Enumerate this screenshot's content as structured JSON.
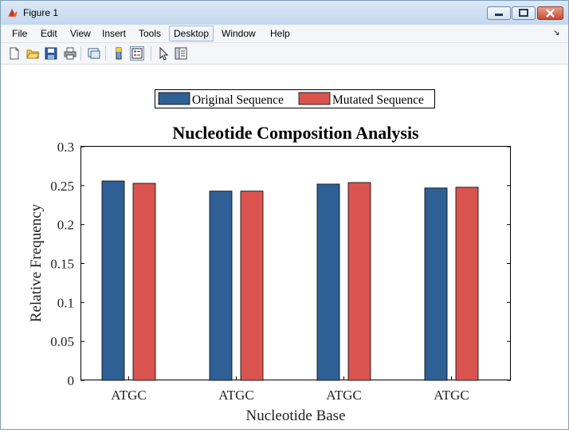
{
  "window": {
    "title": "Figure 1"
  },
  "menu": [
    "File",
    "Edit",
    "View",
    "Insert",
    "Tools",
    "Desktop",
    "Window",
    "Help"
  ],
  "toolbar_icons": [
    "new-figure-icon",
    "open-file-icon",
    "save-icon",
    "print-icon",
    "link-plot-icon",
    "colorbar-icon",
    "legend-icon",
    "pointer-icon",
    "property-inspector-icon"
  ],
  "colors": {
    "original": "#2e6096",
    "mutated": "#d9534f"
  },
  "chart_data": {
    "type": "bar",
    "title": "Nucleotide Composition Analysis",
    "xlabel": "Nucleotide Base",
    "ylabel": "Relative Frequency",
    "categories": [
      "ATGC",
      "ATGC",
      "ATGC",
      "ATGC"
    ],
    "series": [
      {
        "name": "Original Sequence",
        "values": [
          0.256,
          0.243,
          0.252,
          0.247
        ]
      },
      {
        "name": "Mutated Sequence",
        "values": [
          0.253,
          0.243,
          0.254,
          0.248
        ]
      }
    ],
    "ylim": [
      0,
      0.3
    ],
    "yticks": [
      "0",
      "0.05",
      "0.1",
      "0.15",
      "0.2",
      "0.25",
      "0.3"
    ],
    "legend": "top-center, horizontal"
  }
}
